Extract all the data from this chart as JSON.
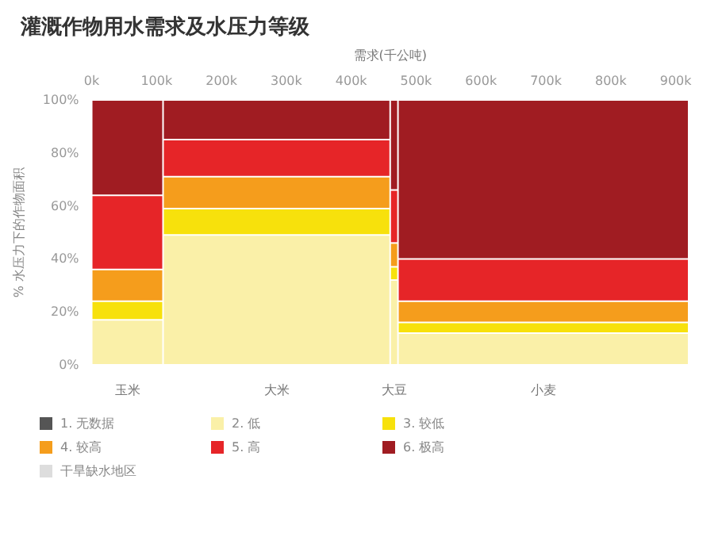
{
  "chart_data": {
    "type": "bar",
    "stacked": true,
    "title": "灌溉作物用水需求及水压力等级",
    "xlabel": "需求(千公吨)",
    "ylabel": "% 水压力下的作物面积",
    "x": [
      55,
      285,
      466,
      696
    ],
    "xlim": [
      0,
      920
    ],
    "xticks": [
      {
        "value": 0,
        "label": "0k"
      },
      {
        "value": 100,
        "label": "100k"
      },
      {
        "value": 200,
        "label": "200k"
      },
      {
        "value": 300,
        "label": "300k"
      },
      {
        "value": 400,
        "label": "400k"
      },
      {
        "value": 500,
        "label": "500k"
      },
      {
        "value": 600,
        "label": "600k"
      },
      {
        "value": 700,
        "label": "700k"
      },
      {
        "value": 800,
        "label": "800k"
      },
      {
        "value": 900,
        "label": "900k"
      }
    ],
    "ylim": [
      0,
      100
    ],
    "yticks": [
      {
        "value": 0,
        "label": "0%"
      },
      {
        "value": 20,
        "label": "20%"
      },
      {
        "value": 40,
        "label": "40%"
      },
      {
        "value": 60,
        "label": "60%"
      },
      {
        "value": 80,
        "label": "80%"
      },
      {
        "value": 100,
        "label": "100%"
      }
    ],
    "series": [
      {
        "name": "1. 无数据",
        "color": "#555555",
        "values": [
          null,
          null,
          null,
          null
        ]
      },
      {
        "name": "2. 低",
        "color": "#faf0a8",
        "values": [
          17,
          49,
          32,
          12
        ]
      },
      {
        "name": "3. 较低",
        "color": "#f7e10c",
        "values": [
          7,
          10,
          5,
          4
        ]
      },
      {
        "name": "4. 较高",
        "color": "#f59d1c",
        "values": [
          12,
          12,
          9,
          8
        ]
      },
      {
        "name": "5. 高",
        "color": "#e62528",
        "values": [
          28,
          14,
          20,
          16
        ]
      },
      {
        "name": "6. 极高",
        "color": "#a01c22",
        "values": [
          36,
          15,
          34,
          60
        ]
      },
      {
        "name": "干旱缺水地区",
        "color": "#dddddd",
        "values": [
          null,
          null,
          null,
          null
        ]
      }
    ],
    "annotations": [
      {
        "text": "玉米",
        "x": 55,
        "y": 0
      },
      {
        "text": "大米",
        "x": 285,
        "y": 0
      },
      {
        "text": "大豆",
        "x": 466,
        "y": 0
      },
      {
        "text": "小麦",
        "x": 696,
        "y": 0
      }
    ],
    "grid": false,
    "legend": "bottom"
  }
}
